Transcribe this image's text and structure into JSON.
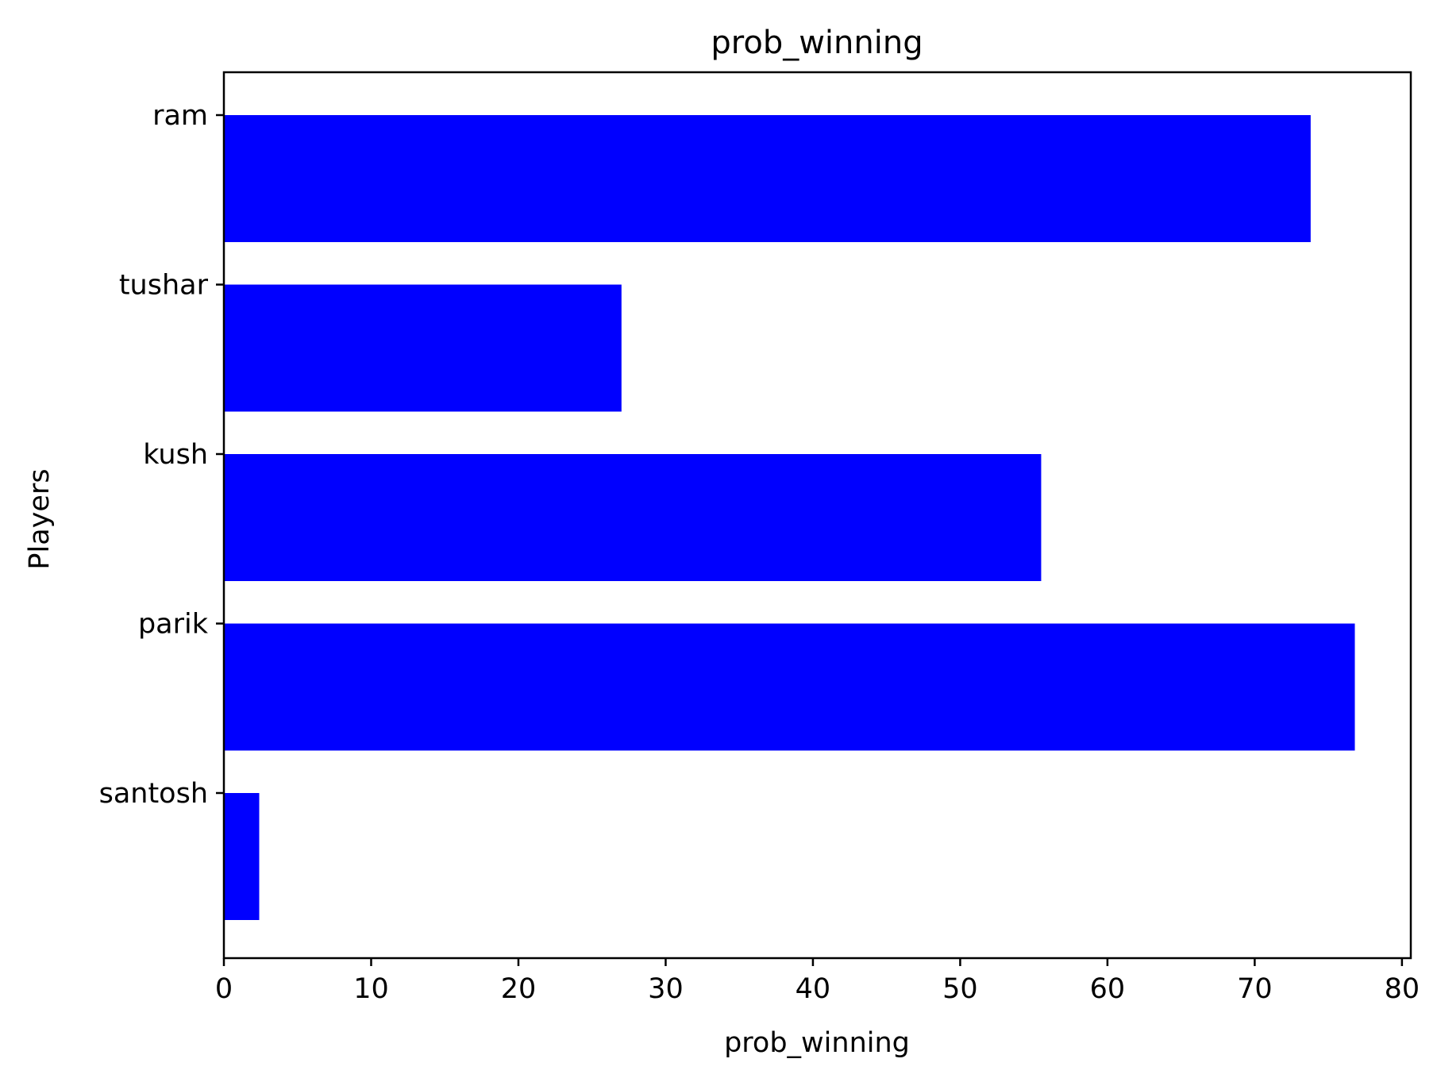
{
  "chart_data": {
    "type": "bar",
    "orientation": "horizontal",
    "title": "prob_winning",
    "xlabel": "prob_winning",
    "ylabel": "Players",
    "categories": [
      "ram",
      "tushar",
      "kush",
      "parik",
      "santosh"
    ],
    "values": [
      73.8,
      27.0,
      55.5,
      76.8,
      2.4
    ],
    "xlim": [
      0,
      80.6
    ],
    "xticks": [
      0,
      10,
      20,
      30,
      40,
      50,
      60,
      70,
      80
    ],
    "tick_alignment": "top-of-bar",
    "grid": false,
    "legend": "none",
    "bar_color": "#0000ff"
  }
}
